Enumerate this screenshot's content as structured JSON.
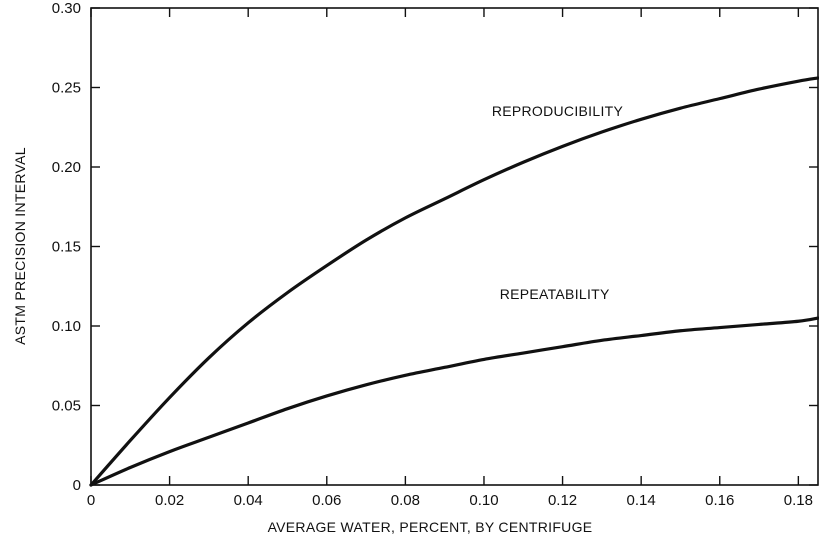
{
  "chart_data": {
    "type": "line",
    "title": "",
    "xlabel": "AVERAGE WATER, PERCENT, BY CENTRIFUGE",
    "ylabel": "ASTM PRECISION INTERVAL",
    "xlim": [
      0,
      0.185
    ],
    "ylim": [
      0,
      0.3
    ],
    "x_ticks": [
      0,
      0.02,
      0.04,
      0.06,
      0.08,
      0.1,
      0.12,
      0.14,
      0.16,
      0.18
    ],
    "x_tick_labels": [
      "0",
      "0.02",
      "0.04",
      "0.06",
      "0.08",
      "0.10",
      "0.12",
      "0.14",
      "0.16",
      "0.18"
    ],
    "y_ticks": [
      0,
      0.05,
      0.1,
      0.15,
      0.2,
      0.25,
      0.3
    ],
    "y_tick_labels": [
      "0",
      "0.05",
      "0.10",
      "0.15",
      "0.20",
      "0.25",
      "0.30"
    ],
    "grid": false,
    "series": [
      {
        "name": "REPRODUCIBILITY",
        "x": [
          0,
          0.01,
          0.02,
          0.03,
          0.04,
          0.05,
          0.06,
          0.07,
          0.08,
          0.09,
          0.1,
          0.11,
          0.12,
          0.13,
          0.14,
          0.15,
          0.16,
          0.17,
          0.18,
          0.185
        ],
        "y": [
          0,
          0.028,
          0.055,
          0.08,
          0.102,
          0.121,
          0.138,
          0.154,
          0.168,
          0.18,
          0.192,
          0.203,
          0.213,
          0.222,
          0.23,
          0.237,
          0.243,
          0.249,
          0.254,
          0.256
        ]
      },
      {
        "name": "REPEATABILITY",
        "x": [
          0,
          0.01,
          0.02,
          0.03,
          0.04,
          0.05,
          0.06,
          0.07,
          0.08,
          0.09,
          0.1,
          0.11,
          0.12,
          0.13,
          0.14,
          0.15,
          0.16,
          0.17,
          0.18,
          0.185
        ],
        "y": [
          0,
          0.011,
          0.021,
          0.03,
          0.039,
          0.048,
          0.056,
          0.063,
          0.069,
          0.074,
          0.079,
          0.083,
          0.087,
          0.091,
          0.094,
          0.097,
          0.099,
          0.101,
          0.103,
          0.105
        ]
      }
    ]
  }
}
